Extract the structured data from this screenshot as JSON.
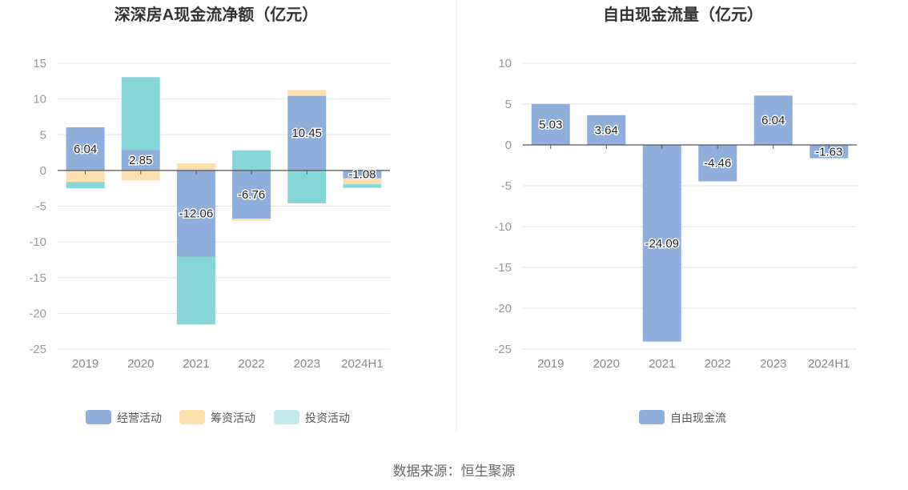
{
  "chart_data": [
    {
      "type": "bar",
      "stacked": true,
      "title": "深深房A现金流净额（亿元）",
      "categories": [
        "2019",
        "2020",
        "2021",
        "2022",
        "2023",
        "2024H1"
      ],
      "ylim": [
        -25,
        15
      ],
      "yticks": [
        15,
        10,
        5,
        0,
        -5,
        -10,
        -15,
        -20,
        -25
      ],
      "grid": true,
      "legend_position": "bottom",
      "series": [
        {
          "name": "经营活动",
          "values": [
            6.04,
            2.85,
            -12.06,
            -6.76,
            10.45,
            -1.08
          ],
          "color": "#8eaedc",
          "labeled": true
        },
        {
          "name": "筹资活动",
          "values": [
            -1.6,
            -1.4,
            1.0,
            -0.3,
            0.8,
            -0.85
          ],
          "color": "#fde0ae",
          "labeled": false
        },
        {
          "name": "投资活动",
          "values": [
            -0.9,
            10.2,
            -9.5,
            2.8,
            -4.6,
            -0.5
          ],
          "color": "#86d5d8",
          "labeled": false
        }
      ]
    },
    {
      "type": "bar",
      "title": "自由现金流量（亿元）",
      "categories": [
        "2019",
        "2020",
        "2021",
        "2022",
        "2023",
        "2024H1"
      ],
      "ylim": [
        -25,
        10
      ],
      "yticks": [
        10,
        5,
        0,
        -5,
        -10,
        -15,
        -20,
        -25
      ],
      "grid": true,
      "legend_position": "bottom",
      "series": [
        {
          "name": "自由现金流",
          "values": [
            5.03,
            3.64,
            -24.09,
            -4.46,
            6.04,
            -1.63
          ],
          "color": "#8eaedc",
          "labeled": true
        }
      ]
    }
  ],
  "source": "数据来源：恒生聚源",
  "colors": {
    "axis": "#555555",
    "grid": "#e6e6e6",
    "divider": "#eeeeee",
    "legend_invest": "#c3e9ec"
  }
}
